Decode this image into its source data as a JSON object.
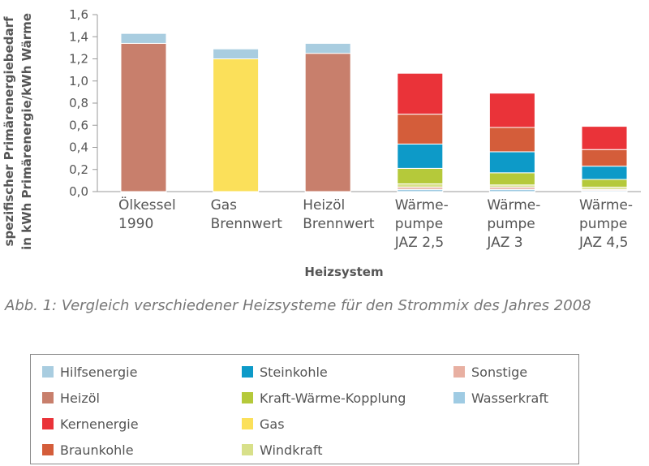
{
  "chart_data": {
    "type": "bar",
    "stacked": true,
    "xlabel": "Heizsystem",
    "ylabel_lines": [
      "spezifischer Primärenergiebedarf",
      "in kWh Primärenergie/kWh Wärme"
    ],
    "ylim": [
      0,
      1.6
    ],
    "yticks": [
      "0,0",
      "0,2",
      "0,4",
      "0,6",
      "0,8",
      "1,0",
      "1,2",
      "1,4",
      "1,6"
    ],
    "categories": [
      [
        "Ölkessel",
        "1990"
      ],
      [
        "Gas",
        "Brennwert"
      ],
      [
        "Heizöl",
        "Brennwert"
      ],
      [
        "Wärme-",
        "pumpe",
        "JAZ 2,5"
      ],
      [
        "Wärme-",
        "pumpe",
        "JAZ 3"
      ],
      [
        "Wärme-",
        "pumpe",
        "JAZ 4,5"
      ]
    ],
    "series": [
      {
        "name": "Heizöl",
        "color": "#c87f6c",
        "values": [
          1.34,
          0,
          1.25,
          0,
          0,
          0
        ]
      },
      {
        "name": "Gas",
        "color": "#fbe05a",
        "values": [
          0,
          1.2,
          0,
          0,
          0,
          0
        ]
      },
      {
        "name": "Wasserkraft",
        "color": "#9fcbe3",
        "values": [
          0,
          0,
          0,
          0.02,
          0.02,
          0.01
        ]
      },
      {
        "name": "Sonstige",
        "color": "#e8b0a2",
        "values": [
          0,
          0,
          0,
          0.02,
          0.02,
          0.01
        ]
      },
      {
        "name": "Windkraft",
        "color": "#d8e08a",
        "values": [
          0,
          0,
          0,
          0.03,
          0.02,
          0.02
        ]
      },
      {
        "name": "Kraft-Wärme-Kopplung",
        "color": "#b5c93a",
        "values": [
          0,
          0,
          0,
          0.14,
          0.11,
          0.07
        ]
      },
      {
        "name": "Steinkohle",
        "color": "#0d9ac8",
        "values": [
          0,
          0,
          0,
          0.22,
          0.19,
          0.12
        ]
      },
      {
        "name": "Braunkohle",
        "color": "#d45d3a",
        "values": [
          0,
          0,
          0,
          0.27,
          0.22,
          0.15
        ]
      },
      {
        "name": "Kernenergie",
        "color": "#ea3339",
        "values": [
          0,
          0,
          0,
          0.37,
          0.31,
          0.21
        ]
      },
      {
        "name": "Hilfsenergie",
        "color": "#a9cde0",
        "values": [
          0.09,
          0.09,
          0.09,
          0,
          0,
          0
        ]
      }
    ]
  },
  "caption": "Abb. 1: Vergleich verschiedener Heizsysteme für den Strommix des Jahres 2008",
  "legend": {
    "items": [
      {
        "label": "Hilfsenergie",
        "color": "#a9cde0"
      },
      {
        "label": "Heizöl",
        "color": "#c87f6c"
      },
      {
        "label": "Kernenergie",
        "color": "#ea3339"
      },
      {
        "label": "Braunkohle",
        "color": "#d45d3a"
      },
      {
        "label": "Steinkohle",
        "color": "#0d9ac8"
      },
      {
        "label": "Kraft-Wärme-Kopplung",
        "color": "#b5c93a"
      },
      {
        "label": "Gas",
        "color": "#fbe05a"
      },
      {
        "label": "Windkraft",
        "color": "#d8e08a"
      },
      {
        "label": "Sonstige",
        "color": "#e8b0a2"
      },
      {
        "label": "Wasserkraft",
        "color": "#9fcbe3"
      }
    ]
  }
}
